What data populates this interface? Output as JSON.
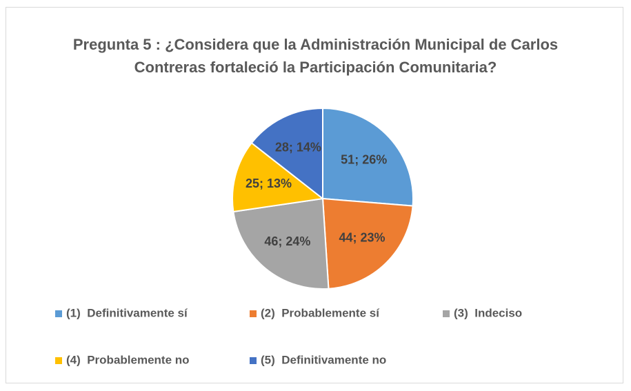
{
  "chart_data": {
    "type": "pie",
    "title": "Pregunta 5 : ¿Considera que la Administración Municipal de Carlos Contreras fortaleció la Participación Comunitaria?",
    "categories": [
      "(1)  Definitivamente sí",
      "(2)  Probablemente sí",
      "(3)  Indeciso",
      "(4)  Probablemente no",
      "(5)  Definitivamente no"
    ],
    "values": [
      51,
      44,
      46,
      25,
      28
    ],
    "value_labels": [
      "51; 26%",
      "44; 23%",
      "46; 24%",
      "25; 13%",
      "28; 14%"
    ],
    "colors": [
      "#5b9bd5",
      "#ed7d31",
      "#a5a5a5",
      "#ffc000",
      "#4472c4"
    ],
    "legend": "bottom"
  }
}
